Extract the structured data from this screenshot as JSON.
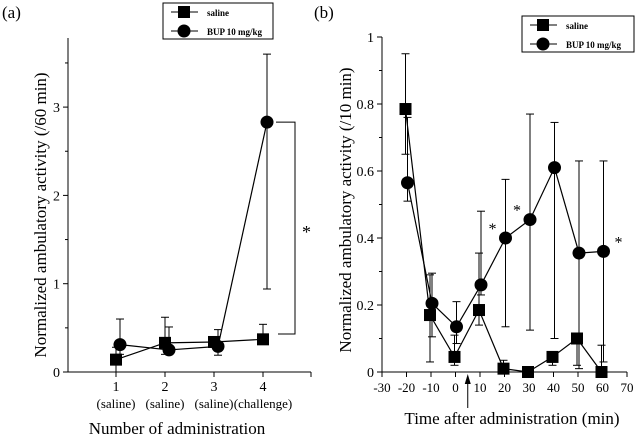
{
  "chart_data": [
    {
      "panel_label": "(a)",
      "type": "line",
      "xlabel": "Number of administration",
      "ylabel": "Normalized ambulatory activity (/60 min)",
      "x": [
        1,
        2,
        3,
        4
      ],
      "x_tick_labels": [
        "1",
        "2",
        "3",
        "4"
      ],
      "x_sub_labels": [
        "(saline)",
        "(saline)",
        "(saline)",
        "(challenge)"
      ],
      "y_ticks": [
        "0",
        "1",
        "2",
        "3"
      ],
      "ylim": [
        0,
        3.8
      ],
      "legend": "top-right",
      "series": [
        {
          "name": "saline",
          "marker": "square",
          "values": [
            0.14,
            0.33,
            0.34,
            0.37
          ],
          "err_low": [
            0.0,
            0.2,
            0.28,
            0.37
          ],
          "err_high": [
            0.28,
            0.62,
            0.4,
            0.54
          ]
        },
        {
          "name": "BUP 10 mg/kg",
          "marker": "circle",
          "values": [
            0.31,
            0.25,
            0.29,
            2.83
          ],
          "err_low": [
            0.2,
            0.2,
            0.19,
            0.94
          ],
          "err_high": [
            0.6,
            0.51,
            0.48,
            3.6
          ]
        }
      ],
      "annotations": [
        {
          "text": "*",
          "type": "bracket",
          "between_x": 4
        }
      ]
    },
    {
      "panel_label": "(b)",
      "type": "line",
      "xlabel": "Time after administration (min)",
      "ylabel": "Normalized ambulatory activity (/10 min)",
      "x": [
        -20,
        -10,
        0,
        10,
        20,
        30,
        40,
        50,
        60
      ],
      "x_ticks": [
        "-30",
        "-20",
        "-10",
        "0",
        "10",
        "20",
        "30",
        "40",
        "50",
        "60",
        "70"
      ],
      "xlim": [
        -30,
        70
      ],
      "y_ticks": [
        "0",
        "0.2",
        "0.4",
        "0.6",
        "0.8",
        "1"
      ],
      "ylim": [
        0,
        1
      ],
      "legend": "top-right",
      "administration_arrow_x": 5,
      "series": [
        {
          "name": "saline",
          "marker": "square",
          "values": [
            0.785,
            0.17,
            0.045,
            0.185,
            0.01,
            0.0,
            0.045,
            0.1,
            0.0
          ],
          "err_low": [
            0.65,
            0.03,
            0.02,
            0.14,
            0.0,
            0.0,
            0.02,
            0.02,
            0.0
          ],
          "err_high": [
            0.95,
            0.29,
            0.11,
            0.355,
            0.035,
            0.0,
            0.06,
            0.115,
            0.08
          ]
        },
        {
          "name": "BUP 10 mg/kg",
          "marker": "circle",
          "values": [
            0.565,
            0.205,
            0.135,
            0.26,
            0.4,
            0.455,
            0.61,
            0.355,
            0.36
          ],
          "err_low": [
            0.51,
            0.105,
            0.085,
            0.23,
            0.135,
            0.125,
            0.1,
            0.01,
            0.03
          ],
          "err_high": [
            0.76,
            0.295,
            0.21,
            0.48,
            0.575,
            0.77,
            0.745,
            0.63,
            0.63
          ]
        }
      ],
      "annotations": [
        {
          "text": "*",
          "x": 20
        },
        {
          "text": "*",
          "x": 30
        },
        {
          "text": "*",
          "x": 60
        }
      ]
    }
  ]
}
